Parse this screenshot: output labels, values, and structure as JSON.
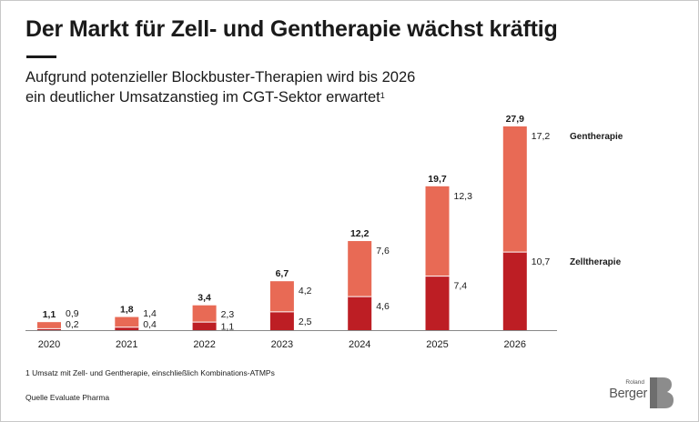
{
  "title": "Der Markt für Zell- und Gentherapie wächst kräftig",
  "subtitle_line1": "Aufgrund potenzieller Blockbuster-Therapien wird bis 2026",
  "subtitle_line2": "ein deutlicher Umsatzanstieg im CGT-Sektor erwartet",
  "subtitle_footnote_mark": "1",
  "footnote": "1   Umsatz mit Zell- und Gentherapie, einschließlich Kombinations-ATMPs",
  "source": "Quelle Evaluate Pharma",
  "logo": {
    "small": "Roland",
    "big": "Berger",
    "letter": "B"
  },
  "colors": {
    "zelltherapie": "#bd1e24",
    "gentherapie": "#e86a55",
    "text": "#1a1a1a",
    "axis": "#888888",
    "logo_gray": "#8c8c8c"
  },
  "chart_data": {
    "type": "bar",
    "stacked": true,
    "categories": [
      "2020",
      "2021",
      "2022",
      "2023",
      "2024",
      "2025",
      "2026"
    ],
    "series": [
      {
        "name": "Zelltherapie",
        "values": [
          0.2,
          0.4,
          1.1,
          2.5,
          4.6,
          7.4,
          10.7
        ],
        "labels": [
          "0,2",
          "0,4",
          "1,1",
          "2,5",
          "4,6",
          "7,4",
          "10,7"
        ]
      },
      {
        "name": "Gentherapie",
        "values": [
          0.9,
          1.4,
          2.3,
          4.2,
          7.6,
          12.3,
          17.2
        ],
        "labels": [
          "0,9",
          "1,4",
          "2,3",
          "4,2",
          "7,6",
          "12,3",
          "17,2"
        ]
      }
    ],
    "totals": [
      1.1,
      1.8,
      3.4,
      6.7,
      12.2,
      19.7,
      27.9
    ],
    "total_labels": [
      "1,1",
      "1,8",
      "3,4",
      "6,7",
      "12,2",
      "19,7",
      "27,9"
    ],
    "xlabel": "",
    "ylabel": "",
    "ylim": [
      0,
      27.9
    ],
    "grid": false,
    "legend": "inline labels right of the 2026 bar"
  }
}
